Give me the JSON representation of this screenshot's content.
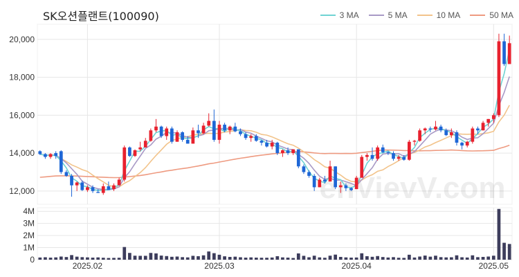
{
  "title": "SK오션플랜트(100090)",
  "watermark": "enVievV.com",
  "colors": {
    "up": "#e8212e",
    "down": "#1e66d6",
    "ma3": "#6fd3d3",
    "ma5": "#a899c6",
    "ma10": "#f2c38a",
    "ma50": "#ee9a80",
    "volume": "#3d3d5c",
    "grid": "#e6e6e6"
  },
  "legend": [
    {
      "label": "3 MA",
      "color": "#6fd3d3"
    },
    {
      "label": "5 MA",
      "color": "#a899c6"
    },
    {
      "label": "10 MA",
      "color": "#f2c38a"
    },
    {
      "label": "50 MA",
      "color": "#ee9a80"
    }
  ],
  "chart_data": {
    "type": "candlestick",
    "title": "SK오션플랜트(100090)",
    "price_axis": {
      "ylim": [
        11300,
        20800
      ],
      "ticks": [
        12000,
        14000,
        16000,
        18000,
        20000
      ],
      "tick_labels": [
        "12,000",
        "14,000",
        "16,000",
        "18,000",
        "20,000"
      ]
    },
    "volume_axis": {
      "ylim": [
        0,
        4300000
      ],
      "ticks": [
        0,
        1000000,
        2000000,
        3000000,
        4000000
      ],
      "tick_labels": [
        "0",
        "1M",
        "2M",
        "3M",
        "4M"
      ]
    },
    "x_tick_labels": [
      {
        "label": "2025.02",
        "index": 9
      },
      {
        "label": "2025.03",
        "index": 34
      },
      {
        "label": "2025.04",
        "index": 60
      },
      {
        "label": "2025.05",
        "index": 86
      }
    ],
    "grid": true,
    "legend_position": "top-right",
    "candles": [
      [
        14100,
        14150,
        13900,
        13950
      ],
      [
        13950,
        14000,
        13700,
        13800
      ],
      [
        13800,
        14000,
        13700,
        13950
      ],
      [
        14000,
        14100,
        13700,
        13850
      ],
      [
        14100,
        14150,
        12900,
        13000
      ],
      [
        13000,
        13100,
        12750,
        12800
      ],
      [
        12800,
        12900,
        11700,
        12300
      ],
      [
        12300,
        12500,
        12000,
        12450
      ],
      [
        12450,
        12550,
        12000,
        12050
      ],
      [
        12050,
        12300,
        11950,
        12200
      ],
      [
        12200,
        12300,
        11900,
        12000
      ],
      [
        11950,
        12100,
        11900,
        11900
      ],
      [
        11900,
        12400,
        11800,
        12250
      ],
      [
        12250,
        12500,
        12100,
        12050
      ],
      [
        12100,
        12400,
        12000,
        12300
      ],
      [
        12300,
        12700,
        12300,
        12600
      ],
      [
        12600,
        14400,
        12500,
        14300
      ],
      [
        14300,
        14350,
        13800,
        13850
      ],
      [
        13850,
        14200,
        13800,
        14150
      ],
      [
        14200,
        14600,
        14100,
        14300
      ],
      [
        14300,
        14800,
        14300,
        14650
      ],
      [
        14650,
        15300,
        14600,
        15200
      ],
      [
        15200,
        15800,
        15100,
        15400
      ],
      [
        15400,
        15450,
        14800,
        14900
      ],
      [
        14900,
        15400,
        14700,
        15300
      ],
      [
        15300,
        15400,
        14500,
        14600
      ],
      [
        14600,
        15200,
        14600,
        15100
      ],
      [
        15100,
        15150,
        14600,
        14700
      ],
      [
        14700,
        14900,
        14500,
        14500
      ],
      [
        14500,
        15350,
        14500,
        15200
      ],
      [
        15200,
        15500,
        14800,
        15050
      ],
      [
        15050,
        15600,
        15000,
        15450
      ],
      [
        15450,
        16100,
        15400,
        15700
      ],
      [
        15700,
        16300,
        14600,
        14700
      ],
      [
        14700,
        15700,
        14500,
        15500
      ],
      [
        15500,
        15600,
        15100,
        15200
      ],
      [
        15200,
        15450,
        15000,
        15400
      ],
      [
        15400,
        15600,
        15100,
        15150
      ],
      [
        15150,
        15300,
        14900,
        15000
      ],
      [
        15000,
        15100,
        14700,
        14800
      ],
      [
        14800,
        15000,
        14600,
        14900
      ],
      [
        14900,
        15000,
        14600,
        14650
      ],
      [
        14650,
        14700,
        14400,
        14550
      ],
      [
        14550,
        14700,
        14300,
        14350
      ],
      [
        14350,
        14700,
        14200,
        14550
      ],
      [
        14550,
        14600,
        13900,
        14000
      ],
      [
        14000,
        14200,
        13800,
        14150
      ],
      [
        14150,
        14300,
        13900,
        14000
      ],
      [
        14000,
        14200,
        13900,
        14200
      ],
      [
        14200,
        14200,
        13200,
        13300
      ],
      [
        13300,
        13400,
        12900,
        13000
      ],
      [
        13000,
        13100,
        12700,
        12800
      ],
      [
        12800,
        12900,
        12000,
        12200
      ],
      [
        12200,
        12700,
        12200,
        12600
      ],
      [
        12600,
        12800,
        12400,
        12500
      ],
      [
        12500,
        13600,
        12500,
        13300
      ],
      [
        13300,
        13300,
        12100,
        12200
      ],
      [
        12200,
        12500,
        11900,
        12300
      ],
      [
        12300,
        12400,
        12000,
        12150
      ],
      [
        12150,
        12200,
        12000,
        12050
      ],
      [
        12100,
        12800,
        12100,
        12700
      ],
      [
        12700,
        13900,
        12700,
        13800
      ],
      [
        13800,
        14000,
        13600,
        13900
      ],
      [
        13900,
        14300,
        13600,
        13700
      ],
      [
        13700,
        14400,
        13600,
        14300
      ],
      [
        14300,
        14450,
        14000,
        14050
      ],
      [
        14050,
        14100,
        13900,
        14000
      ],
      [
        14000,
        14100,
        13600,
        13700
      ],
      [
        13700,
        13900,
        13600,
        13800
      ],
      [
        13800,
        13900,
        13600,
        13650
      ],
      [
        13650,
        14700,
        13600,
        14600
      ],
      [
        14600,
        14700,
        14400,
        14650
      ],
      [
        14650,
        15300,
        14600,
        15200
      ],
      [
        15200,
        15350,
        15000,
        15300
      ],
      [
        15300,
        15400,
        15100,
        15250
      ],
      [
        15250,
        15700,
        15200,
        15400
      ],
      [
        15400,
        15500,
        15100,
        15200
      ],
      [
        15200,
        15300,
        14900,
        14950
      ],
      [
        14950,
        15300,
        14800,
        15100
      ],
      [
        15100,
        15200,
        14400,
        14550
      ],
      [
        14550,
        14600,
        14200,
        14400
      ],
      [
        14400,
        14650,
        14300,
        14600
      ],
      [
        14600,
        15400,
        14500,
        15300
      ],
      [
        15300,
        15400,
        15000,
        15200
      ],
      [
        15200,
        15700,
        15200,
        15600
      ],
      [
        15600,
        15800,
        15400,
        15800
      ],
      [
        15800,
        16100,
        15600,
        16000
      ],
      [
        16000,
        20300,
        15900,
        19900
      ],
      [
        19900,
        20300,
        18600,
        18700
      ],
      [
        18700,
        20200,
        18700,
        19800
      ]
    ],
    "volumes": [
      180000,
      200000,
      170000,
      190000,
      260000,
      220000,
      380000,
      250000,
      210000,
      190000,
      170000,
      190000,
      160000,
      140000,
      150000,
      160000,
      1050000,
      560000,
      330000,
      320000,
      320000,
      560000,
      520000,
      340000,
      300000,
      240000,
      260000,
      210000,
      190000,
      320000,
      290000,
      360000,
      680000,
      540000,
      410000,
      280000,
      230000,
      250000,
      200000,
      170000,
      190000,
      170000,
      160000,
      160000,
      180000,
      290000,
      190000,
      170000,
      140000,
      520000,
      320000,
      200000,
      330000,
      190000,
      160000,
      330000,
      420000,
      230000,
      190000,
      170000,
      180000,
      530000,
      290000,
      240000,
      300000,
      220000,
      180000,
      210000,
      160000,
      150000,
      410000,
      180000,
      260000,
      340000,
      250000,
      330000,
      210000,
      190000,
      200000,
      360000,
      200000,
      180000,
      360000,
      210000,
      230000,
      260000,
      330000,
      4200000,
      1400000,
      1300000
    ]
  }
}
